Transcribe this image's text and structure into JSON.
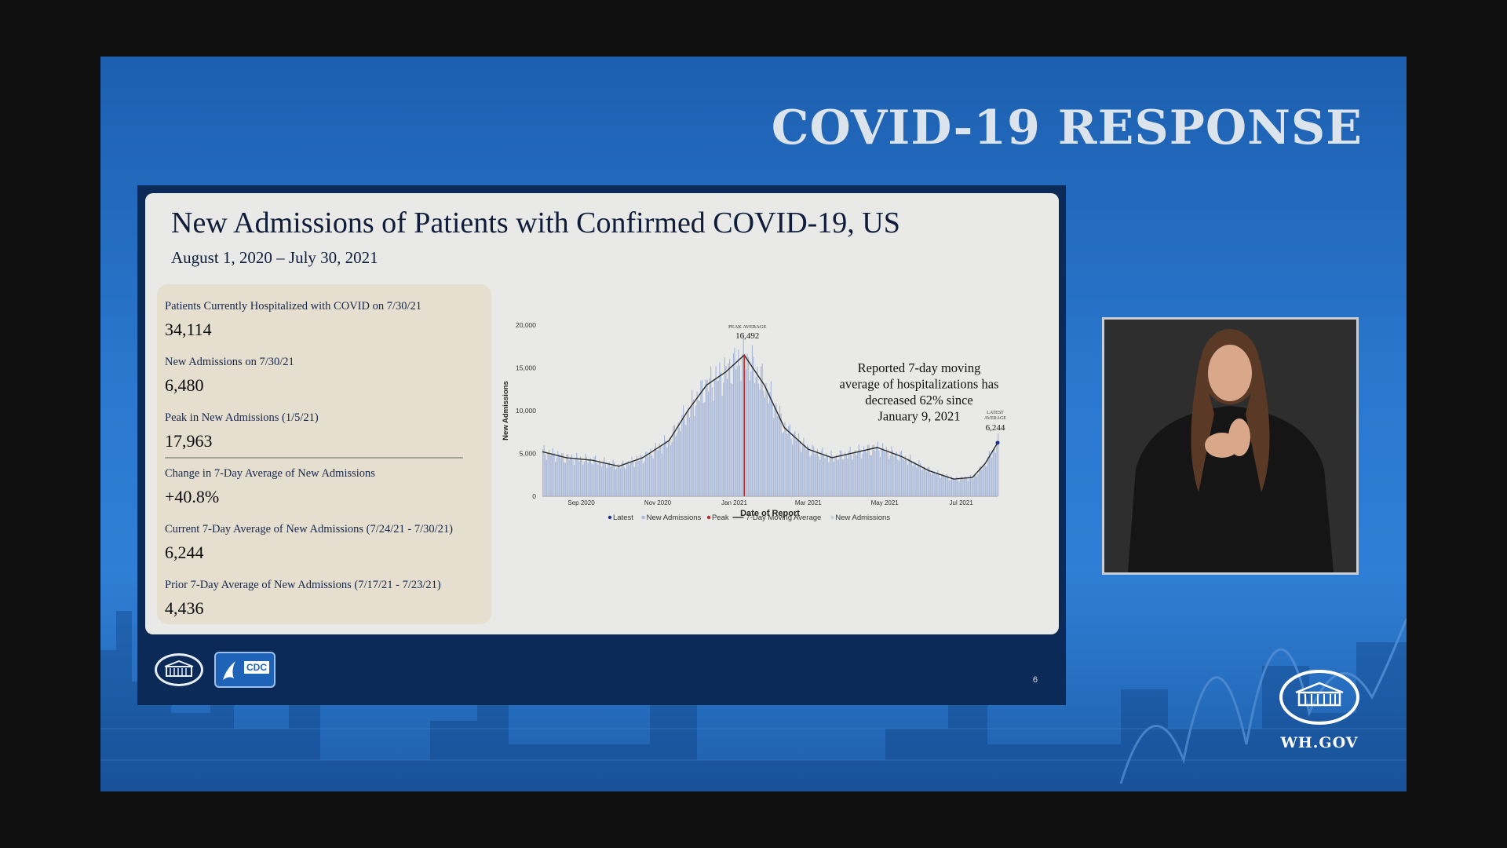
{
  "banner": "COVID-19 RESPONSE",
  "slide": {
    "title": "New Admissions of Patients with Confirmed COVID-19, US",
    "subtitle": "August 1, 2020 – July 30, 2021",
    "page_number": "6"
  },
  "stats": [
    {
      "label": "Patients Currently Hospitalized with COVID on 7/30/21",
      "value": "34,114"
    },
    {
      "label": "New Admissions on 7/30/21",
      "value": "6,480"
    },
    {
      "label": "Peak in New Admissions (1/5/21)",
      "value": "17,963"
    },
    {
      "label": "Change in 7-Day Average of New Admissions",
      "value": "+40.8%"
    },
    {
      "label": "Current 7-Day Average of New Admissions (7/24/21 - 7/30/21)",
      "value": "6,244"
    },
    {
      "label": "Prior 7-Day Average of New Admissions (7/17/21 - 7/23/21)",
      "value": "4,436"
    }
  ],
  "logos": {
    "cdc_text": "CDC"
  },
  "footer": {
    "site": "WH.GOV"
  },
  "colors": {
    "bars": "#a9b9d9",
    "line": "#2b2b2b",
    "peak": "#c0292b",
    "latest": "#23318a"
  },
  "chart_data": {
    "type": "bar",
    "title": "",
    "xlabel": "Date of Report",
    "ylabel": "New Admissions",
    "ylim": [
      0,
      20000
    ],
    "yticks": [
      0,
      5000,
      10000,
      15000,
      20000
    ],
    "ytick_labels": [
      "0",
      "5,000",
      "10,000",
      "15,000",
      "20,000"
    ],
    "xticks": [
      {
        "date": "2020-09-01",
        "label": "Sep 2020"
      },
      {
        "date": "2020-11-01",
        "label": "Nov 2020"
      },
      {
        "date": "2021-01-01",
        "label": "Jan 2021"
      },
      {
        "date": "2021-03-01",
        "label": "Mar 2021"
      },
      {
        "date": "2021-05-01",
        "label": "May 2021"
      },
      {
        "date": "2021-07-01",
        "label": "Jul 2021"
      }
    ],
    "x_range": [
      "2020-08-01",
      "2021-07-30"
    ],
    "moving_average": {
      "name": "7-Day Moving Average",
      "points": [
        {
          "date": "2020-08-01",
          "value": 5200
        },
        {
          "date": "2020-08-20",
          "value": 4500
        },
        {
          "date": "2020-09-10",
          "value": 4200
        },
        {
          "date": "2020-10-01",
          "value": 3500
        },
        {
          "date": "2020-10-20",
          "value": 4500
        },
        {
          "date": "2020-11-10",
          "value": 6500
        },
        {
          "date": "2020-11-25",
          "value": 10000
        },
        {
          "date": "2020-12-10",
          "value": 13000
        },
        {
          "date": "2020-12-25",
          "value": 14500
        },
        {
          "date": "2021-01-09",
          "value": 16492
        },
        {
          "date": "2021-01-25",
          "value": 13000
        },
        {
          "date": "2021-02-10",
          "value": 8000
        },
        {
          "date": "2021-03-01",
          "value": 5500
        },
        {
          "date": "2021-03-20",
          "value": 4500
        },
        {
          "date": "2021-04-10",
          "value": 5200
        },
        {
          "date": "2021-04-25",
          "value": 5700
        },
        {
          "date": "2021-05-15",
          "value": 4600
        },
        {
          "date": "2021-06-05",
          "value": 3000
        },
        {
          "date": "2021-06-25",
          "value": 2000
        },
        {
          "date": "2021-07-10",
          "value": 2200
        },
        {
          "date": "2021-07-20",
          "value": 3800
        },
        {
          "date": "2021-07-30",
          "value": 6244
        }
      ]
    },
    "peak": {
      "date": "2021-01-09",
      "label": "PEAK AVERAGE",
      "value": 16492,
      "value_label": "16,492"
    },
    "latest": {
      "date": "2021-07-30",
      "label": "LATEST AVERAGE",
      "value": 6244,
      "value_label": "6,244"
    },
    "annotation": [
      "Reported 7-day moving",
      "average of hospitalizations has",
      "decreased  62% since",
      "January 9, 2021"
    ],
    "legend": {
      "position": "bottom",
      "items": [
        {
          "name": "Latest",
          "marker": "dot",
          "color": "#23318a"
        },
        {
          "name": "New Admissions",
          "marker": "dot",
          "color": "#a9b9d9"
        },
        {
          "name": "Peak",
          "marker": "dot",
          "color": "#c0292b"
        },
        {
          "name": "7-Day Moving Average",
          "marker": "line",
          "color": "#2b2b2b"
        },
        {
          "name": "New Admissions",
          "marker": "dot",
          "color": "#c8cfdd"
        }
      ]
    }
  }
}
